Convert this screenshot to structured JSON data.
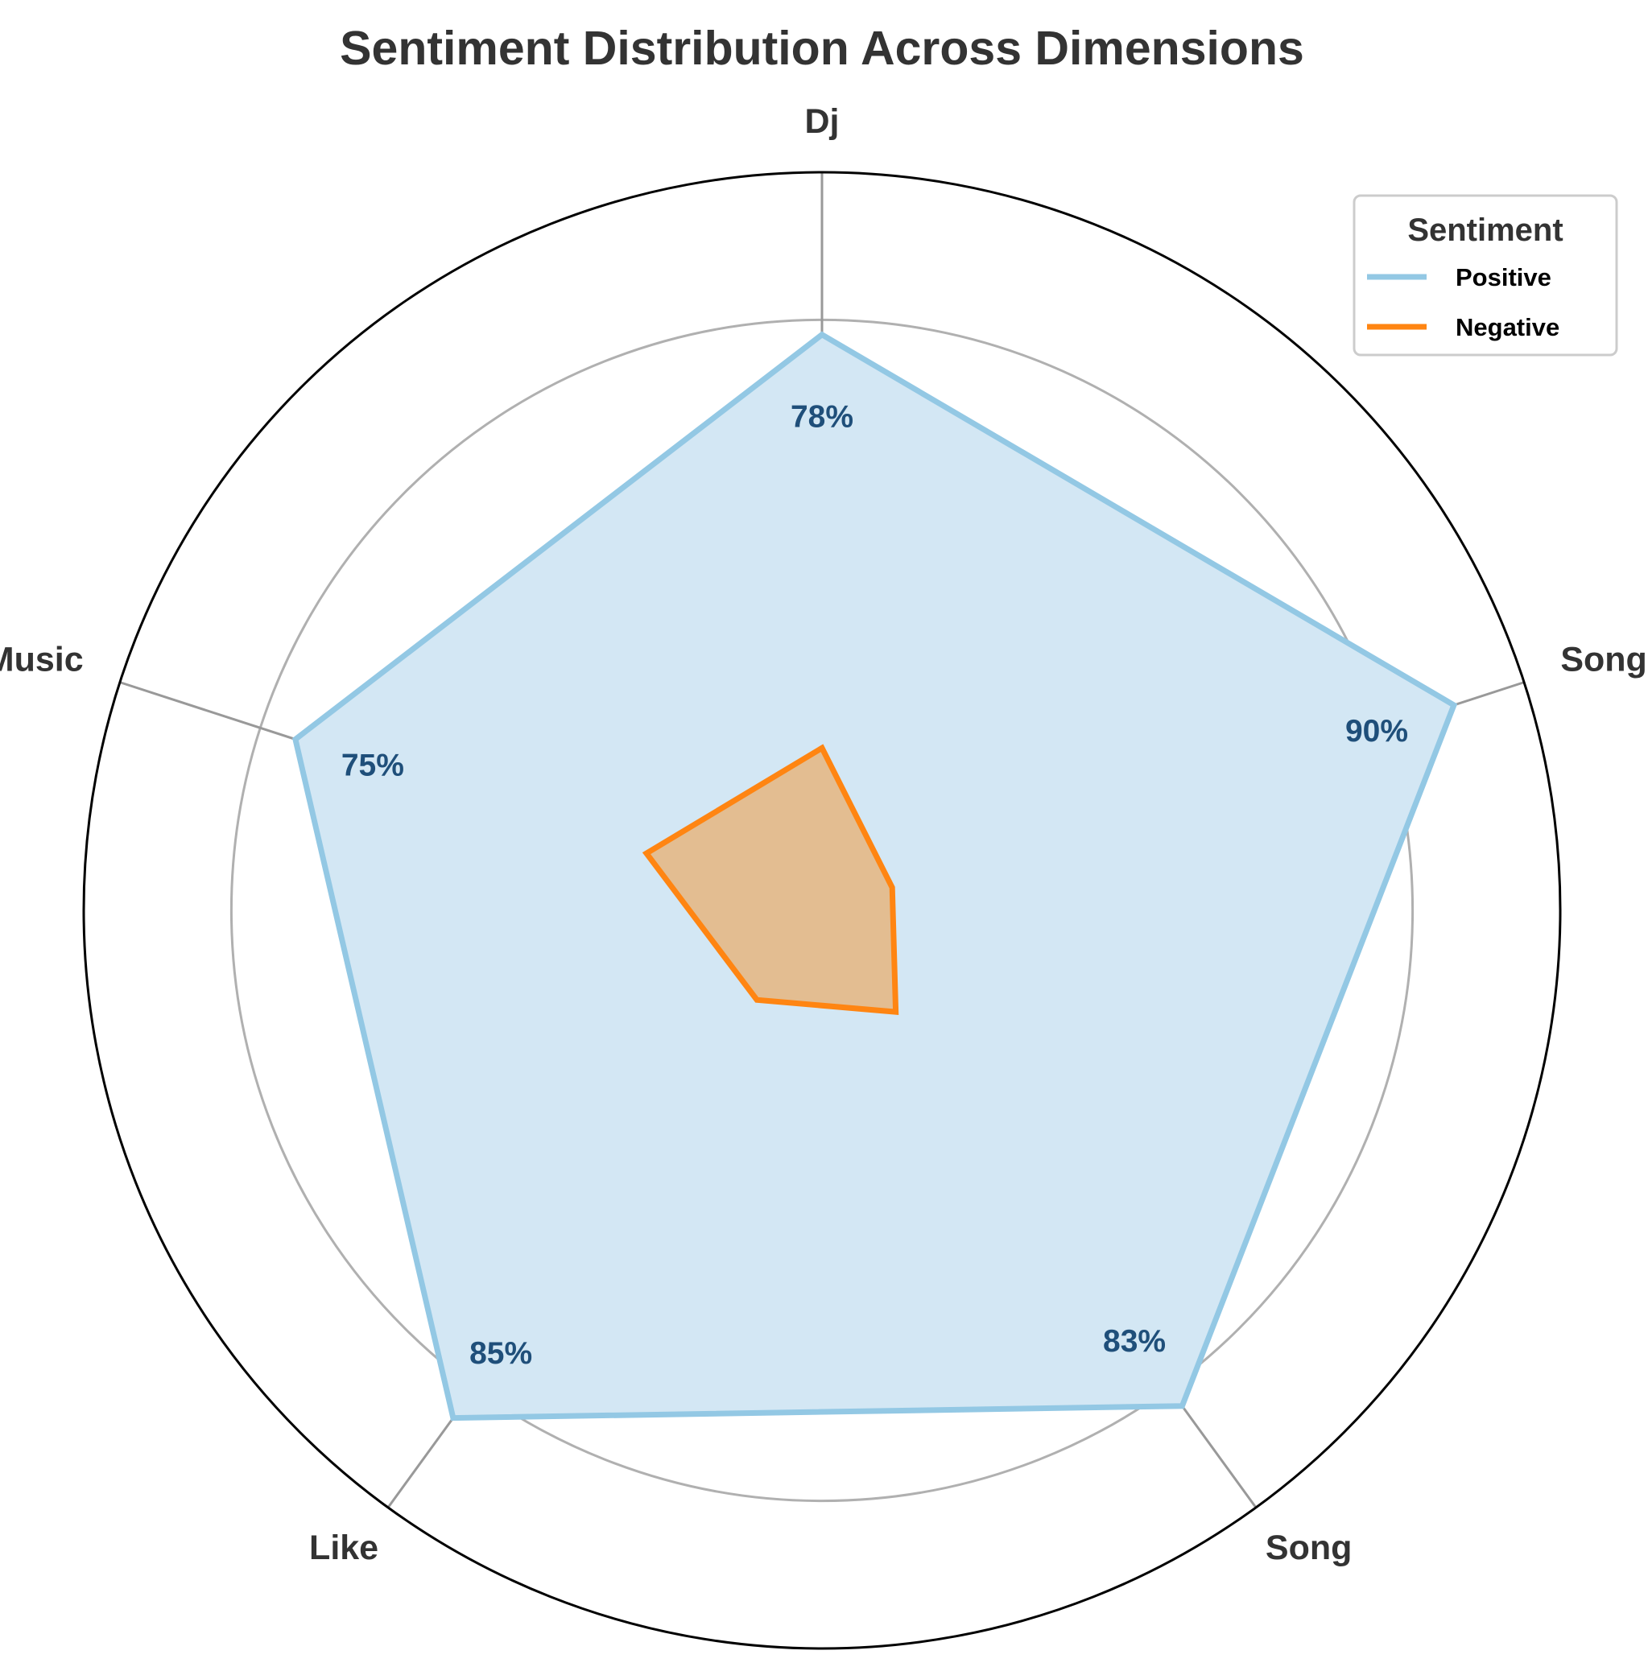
{
  "chart_data": {
    "type": "radar",
    "title": "Sentiment Distribution Across Dimensions",
    "categories": [
      "Dj",
      "Songs",
      "Song",
      "Like",
      "Music"
    ],
    "series": [
      {
        "name": "Positive",
        "values": [
          78,
          90,
          83,
          85,
          75
        ],
        "color": "#93c8e4",
        "fill_color": "#d3e7f4"
      },
      {
        "name": "Negative",
        "values": [
          22,
          10,
          17,
          15,
          25
        ],
        "color": "#ff8512",
        "fill_color": "#e3bd91"
      }
    ],
    "data_labels": [
      "78%",
      "90%",
      "83%",
      "85%",
      "75%"
    ],
    "rmax": 100,
    "grid": true,
    "legend": {
      "title": "Sentiment",
      "placement": "top-right"
    }
  }
}
